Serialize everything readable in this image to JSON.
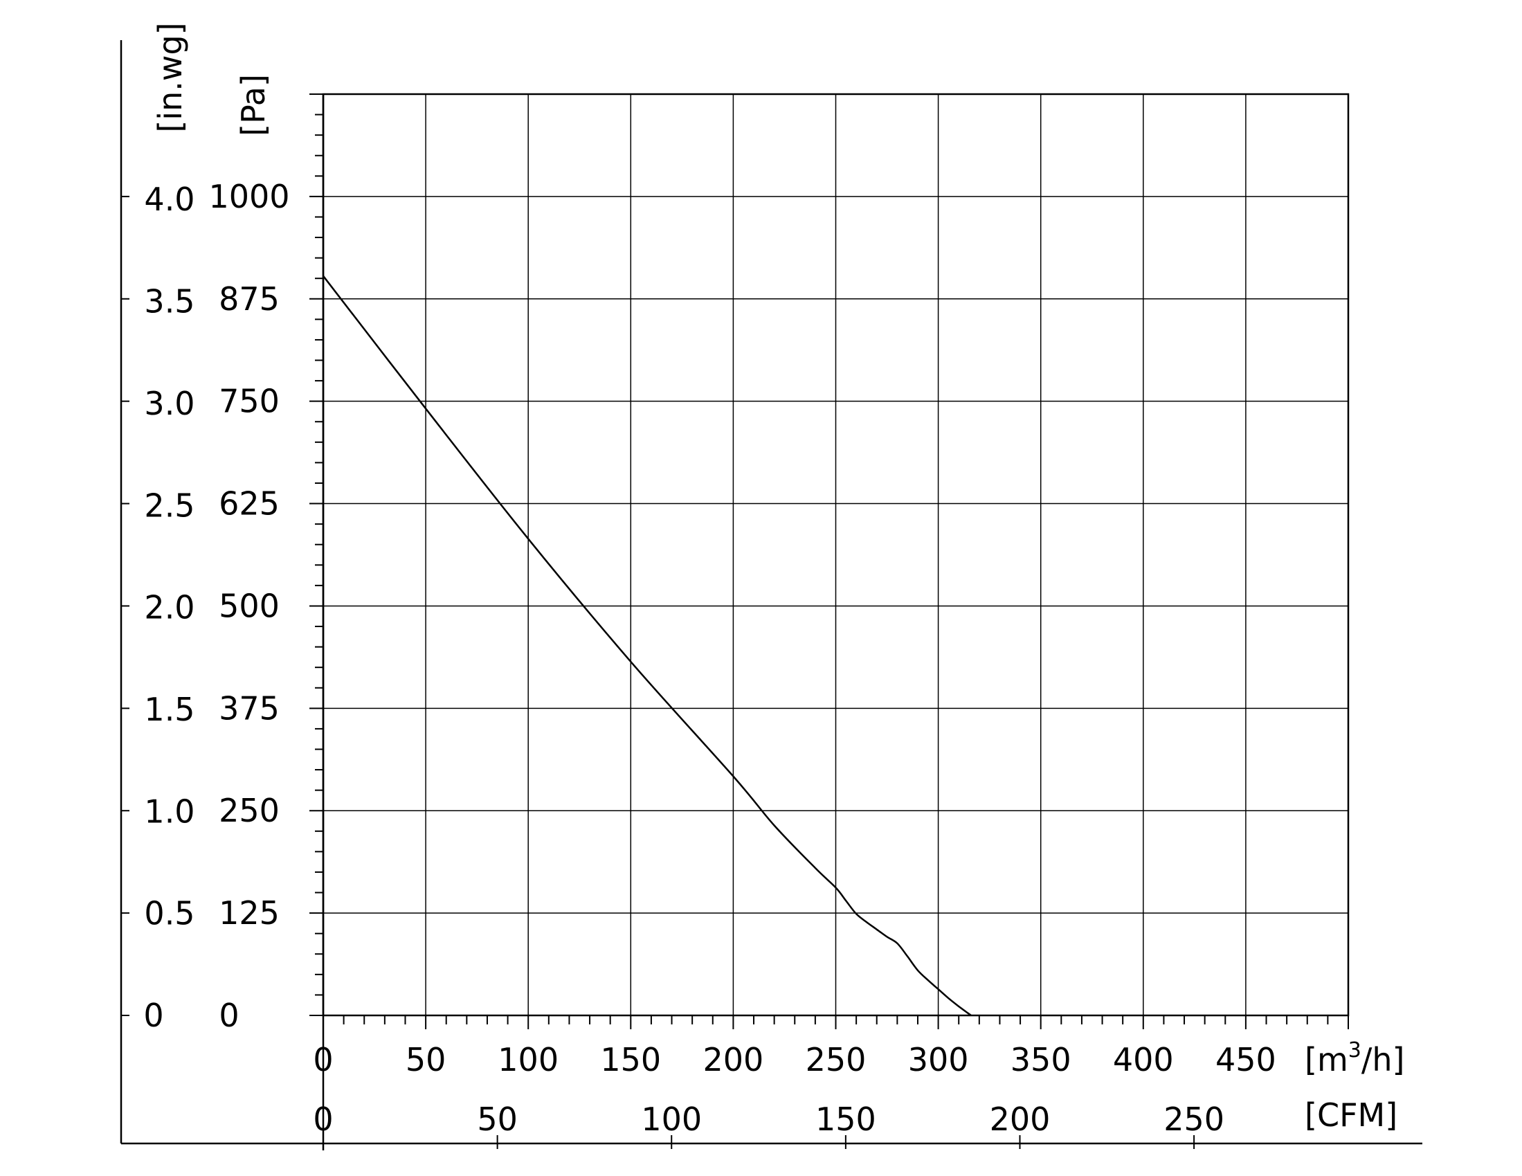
{
  "chart_data": {
    "type": "line",
    "title": "",
    "x_axes": [
      {
        "unit": "[m³/h]",
        "unit_base": "[m",
        "unit_sup": "3",
        "unit_tail": "/h]",
        "range": [
          0,
          500
        ],
        "ticks": [
          0,
          50,
          100,
          150,
          200,
          250,
          300,
          350,
          400,
          450
        ],
        "tick_labels": [
          "0",
          "50",
          "100",
          "150",
          "200",
          "250",
          "300",
          "350",
          "400",
          "450"
        ]
      },
      {
        "unit": "[CFM]",
        "ticks": [
          0,
          50,
          100,
          150,
          200,
          250
        ],
        "tick_labels": [
          "0",
          "50",
          "100",
          "150",
          "200",
          "250"
        ]
      }
    ],
    "y_axes": [
      {
        "unit": "[in.wg]",
        "ticks": [
          0,
          0.5,
          1.0,
          1.5,
          2.0,
          2.5,
          3.0,
          3.5,
          4.0
        ],
        "tick_labels": [
          "0",
          "0.5",
          "1.0",
          "1.5",
          "2.0",
          "2.5",
          "3.0",
          "3.5",
          "4.0"
        ]
      },
      {
        "unit": "[Pa]",
        "range": [
          0,
          1125
        ],
        "ticks": [
          0,
          125,
          250,
          375,
          500,
          625,
          750,
          875,
          1000
        ],
        "tick_labels": [
          "0",
          "125",
          "250",
          "375",
          "500",
          "625",
          "750",
          "875",
          "1000"
        ]
      }
    ],
    "grid": true,
    "series": [
      {
        "x": [
          0,
          50,
          100,
          150,
          200,
          220,
          240,
          250,
          255,
          260,
          265,
          270,
          275,
          280,
          285,
          290,
          295,
          300,
          305,
          310,
          316
        ],
        "y": [
          903,
          741,
          582,
          432,
          292,
          232,
          180,
          156,
          140,
          124,
          114,
          105,
          96,
          88,
          72,
          55,
          43,
          32,
          21,
          11,
          0
        ]
      }
    ]
  }
}
